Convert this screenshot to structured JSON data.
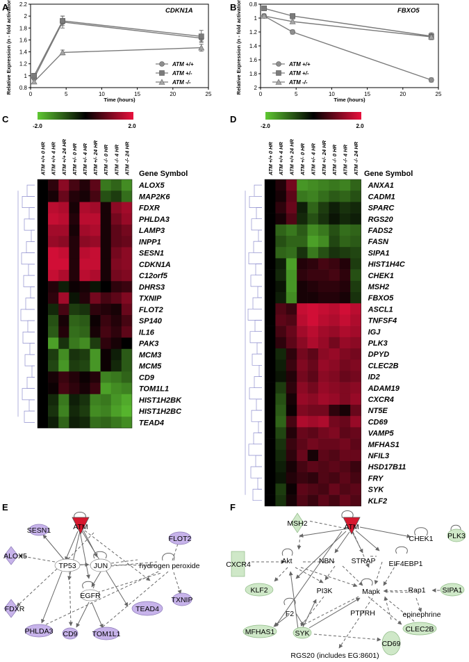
{
  "panel_labels": [
    "A",
    "B",
    "C",
    "D",
    "E",
    "F"
  ],
  "chart_data": [
    {
      "type": "line",
      "title": "CDKN1A",
      "xlabel": "Time (hours)",
      "ylabel": "Relative Expression (n - fold activation)",
      "xlim": [
        0,
        25
      ],
      "ylim": [
        0.8,
        2.2
      ],
      "y_reversed": false,
      "xticks": [
        0,
        5,
        10,
        15,
        20,
        25
      ],
      "yticks": [
        0.8,
        1.0,
        1.2,
        1.4,
        1.6,
        1.8,
        2.0,
        2.2
      ],
      "ytick_labels": [
        "0.8",
        "1",
        "1.2",
        "1.4",
        "1.6",
        "1.8",
        "2",
        "2.2"
      ],
      "x": [
        0.5,
        4.5,
        24
      ],
      "legend_position": "bottom-right",
      "series": [
        {
          "name": "ATM +/+",
          "marker": "circle",
          "values": [
            0.96,
            1.9,
            1.63
          ],
          "errors": [
            0.03,
            0.1,
            0.06
          ]
        },
        {
          "name": "ATM +/-",
          "marker": "square",
          "values": [
            1.0,
            1.92,
            1.66
          ],
          "errors": [
            0.03,
            0.08,
            0.1
          ]
        },
        {
          "name": "ATM -/-",
          "marker": "triangle",
          "values": [
            0.9,
            1.39,
            1.47
          ],
          "errors": [
            0.03,
            0.04,
            0.06
          ]
        }
      ]
    },
    {
      "type": "line",
      "title": "FBXO5",
      "xlabel": "Time (hours)",
      "ylabel": "Relative Expression (n - fold activation)",
      "xlim": [
        0,
        25
      ],
      "ylim": [
        0.8,
        2.0
      ],
      "y_reversed": true,
      "xticks": [
        0,
        5,
        10,
        15,
        20,
        25
      ],
      "yticks": [
        0.8,
        1.0,
        1.2,
        1.4,
        1.6,
        1.8,
        2.0
      ],
      "ytick_labels": [
        "0.8",
        "1",
        "1.2",
        "1.4",
        "1.6",
        "1.8",
        "2"
      ],
      "x": [
        0.5,
        4.5,
        24
      ],
      "legend_position": "bottom-left",
      "series": [
        {
          "name": "ATM +/+",
          "marker": "circle",
          "values": [
            0.97,
            1.2,
            1.89
          ],
          "errors": [
            0.03,
            0.03,
            0.03
          ]
        },
        {
          "name": "ATM +/-",
          "marker": "square",
          "values": [
            0.86,
            0.97,
            1.26
          ],
          "errors": [
            0.03,
            0.03,
            0.05
          ]
        },
        {
          "name": "ATM -/-",
          "marker": "triangle",
          "values": [
            0.97,
            1.05,
            1.27
          ],
          "errors": [
            0.03,
            0.03,
            0.04
          ]
        }
      ]
    },
    {
      "type": "heatmap",
      "colorbar": {
        "min_label": "-2.0",
        "max_label": "2.0",
        "low_color": "#5fc832",
        "mid_color": "#000000",
        "high_color": "#e8103c"
      },
      "column_header": "Gene Symbol",
      "columns": [
        "ATM +/+ 0 HR",
        "ATM +/+ 4 HR",
        "ATM +/+ 24 HR",
        "ATM +/- 0 HR",
        "ATM +/- 4 HR",
        "ATM +/- 24 HR",
        "ATM -/- 0 HR",
        "ATM -/- 4 HR",
        "ATM -/- 24 HR"
      ],
      "rows": [
        "ALOX5",
        "MAP2K6",
        "FDXR",
        "PHLDA3",
        "LAMP3",
        "INPP1",
        "SESN1",
        "CDKN1A",
        "C12orf5",
        "DHRS3",
        "TXNIP",
        "FLOT2",
        "SP140",
        "IL16",
        "PAK3",
        "MCM3",
        "MCM5",
        "CD9",
        "TOM1L1",
        "HIST1H2BK",
        "HIST1H2BC",
        "TEAD4"
      ],
      "values": [
        [
          0.0,
          0.4,
          1.2,
          0.6,
          0.3,
          0.8,
          -1.2,
          -1.0,
          -1.4
        ],
        [
          0.0,
          0.2,
          0.9,
          0.3,
          0.2,
          0.6,
          -0.8,
          -0.6,
          -1.1
        ],
        [
          0.0,
          1.6,
          1.5,
          0.2,
          1.5,
          1.4,
          0.2,
          1.2,
          1.4
        ],
        [
          0.0,
          1.7,
          1.6,
          0.3,
          1.6,
          1.6,
          0.2,
          1.0,
          1.3
        ],
        [
          0.0,
          1.4,
          1.4,
          0.2,
          1.4,
          1.5,
          0.2,
          0.8,
          1.0
        ],
        [
          0.0,
          1.3,
          1.2,
          0.3,
          1.2,
          1.3,
          0.2,
          0.8,
          0.9
        ],
        [
          0.0,
          1.8,
          1.7,
          0.3,
          1.6,
          1.7,
          0.2,
          1.0,
          1.2
        ],
        [
          0.0,
          1.8,
          1.8,
          0.3,
          1.7,
          1.7,
          0.2,
          1.1,
          1.2
        ],
        [
          0.0,
          1.7,
          1.5,
          0.3,
          1.6,
          1.5,
          0.2,
          1.0,
          1.1
        ],
        [
          0.0,
          0.3,
          -0.3,
          0.1,
          0.2,
          -0.2,
          0.0,
          0.4,
          0.5
        ],
        [
          0.0,
          0.4,
          1.4,
          -0.2,
          0.3,
          1.0,
          0.6,
          0.8,
          1.1
        ],
        [
          0.0,
          -0.4,
          0.6,
          -0.6,
          -0.5,
          0.4,
          0.3,
          0.2,
          0.9
        ],
        [
          0.0,
          -0.8,
          0.2,
          -1.0,
          -0.9,
          0.1,
          0.5,
          0.3,
          0.6
        ],
        [
          0.0,
          -0.9,
          0.3,
          -1.1,
          -1.0,
          0.2,
          0.6,
          0.4,
          0.8
        ],
        [
          0.0,
          -1.6,
          -0.5,
          -1.2,
          -1.4,
          -0.6,
          0.4,
          0.2,
          0.0
        ],
        [
          0.0,
          -0.6,
          -1.4,
          -0.5,
          -0.6,
          -1.5,
          0.1,
          -0.3,
          -0.9
        ],
        [
          0.0,
          -0.7,
          -1.5,
          -0.6,
          -0.7,
          -1.5,
          0.1,
          -0.4,
          -0.9
        ],
        [
          0.0,
          0.2,
          0.5,
          0.3,
          0.1,
          0.3,
          -1.3,
          -1.2,
          -1.0
        ],
        [
          0.0,
          0.1,
          0.6,
          0.4,
          0.2,
          0.5,
          -1.6,
          -1.4,
          -1.3
        ],
        [
          0.0,
          -0.4,
          -1.2,
          -0.3,
          -0.5,
          -1.3,
          -1.2,
          -1.5,
          -1.7
        ],
        [
          0.0,
          -0.5,
          -1.3,
          -0.4,
          -0.6,
          -1.4,
          -1.3,
          -1.6,
          -1.8
        ],
        [
          0.0,
          -0.3,
          -1.0,
          -0.3,
          -0.4,
          -1.1,
          -1.0,
          -1.2,
          -1.4
        ]
      ]
    },
    {
      "type": "heatmap",
      "colorbar": {
        "min_label": "-2.0",
        "max_label": "2.0",
        "low_color": "#5fc832",
        "mid_color": "#000000",
        "high_color": "#e8103c"
      },
      "column_header": "Gene Symbol",
      "columns": [
        "ATM +/+ 0 HR",
        "ATM +/+ 4 HR",
        "ATM +/+ 24 HR",
        "ATM +/- 0 HR",
        "ATM +/- 4 HR",
        "ATM +/- 24 HR",
        "ATM -/- 0 HR",
        "ATM -/- 4 HR",
        "ATM -/- 24 HR"
      ],
      "rows": [
        "ANXA1",
        "CADM1",
        "SPARC",
        "RGS20",
        "FADS2",
        "FASN",
        "SIPA1",
        "HIST1H4C",
        "CHEK1",
        "MSH2",
        "FBXO5",
        "ASCL1",
        "TNFSF4",
        "IGJ",
        "PLK3",
        "DPYD",
        "CLEC2B",
        "ID2",
        "ADAM19",
        "CXCR4",
        "NT5E",
        "CD69",
        "VAMP5",
        "MFHAS1",
        "NFIL3",
        "HSD17B11",
        "FRY",
        "SYK",
        "KLF2"
      ],
      "values": [
        [
          0.0,
          0.3,
          1.0,
          -1.5,
          -1.4,
          -1.3,
          -1.2,
          -1.3,
          -1.0
        ],
        [
          0.0,
          0.2,
          0.8,
          -1.2,
          -1.3,
          -1.1,
          -0.9,
          -1.0,
          -0.8
        ],
        [
          0.0,
          0.4,
          0.9,
          -0.3,
          -1.0,
          -0.6,
          -0.3,
          -0.5,
          -0.4
        ],
        [
          0.0,
          0.2,
          0.7,
          -0.4,
          -0.8,
          -0.5,
          -0.2,
          -0.4,
          -0.3
        ],
        [
          0.0,
          -1.0,
          -1.2,
          -0.9,
          -1.4,
          -1.2,
          -0.8,
          -1.1,
          -1.0
        ],
        [
          0.0,
          -0.8,
          -1.0,
          -1.0,
          -1.6,
          -1.4,
          -0.7,
          -1.0,
          -0.9
        ],
        [
          0.0,
          -1.0,
          -1.1,
          -0.5,
          -1.2,
          -0.8,
          -0.5,
          -0.6,
          -0.7
        ],
        [
          0.0,
          -0.3,
          -1.6,
          0.3,
          0.4,
          0.6,
          0.5,
          0.3,
          -0.6
        ],
        [
          0.0,
          -0.4,
          -1.5,
          0.4,
          0.5,
          0.5,
          0.6,
          0.4,
          -0.8
        ],
        [
          0.0,
          -0.2,
          -1.5,
          0.2,
          0.3,
          0.4,
          0.4,
          0.3,
          -0.6
        ],
        [
          0.0,
          -0.3,
          -1.4,
          0.2,
          0.2,
          0.3,
          0.3,
          0.2,
          -0.5
        ],
        [
          0.0,
          0.7,
          0.5,
          1.7,
          1.8,
          1.7,
          1.6,
          1.8,
          1.6
        ],
        [
          0.0,
          0.8,
          0.7,
          1.6,
          1.8,
          1.6,
          1.5,
          1.7,
          1.5
        ],
        [
          0.0,
          0.6,
          0.9,
          1.4,
          1.6,
          1.4,
          1.3,
          1.5,
          1.4
        ],
        [
          0.0,
          0.4,
          0.8,
          1.2,
          1.5,
          1.3,
          1.0,
          1.3,
          1.2
        ],
        [
          0.0,
          -0.4,
          0.4,
          1.0,
          0.8,
          1.2,
          1.3,
          1.1,
          1.0
        ],
        [
          0.0,
          -0.3,
          0.5,
          1.1,
          0.9,
          1.3,
          1.2,
          1.0,
          1.1
        ],
        [
          0.0,
          -0.2,
          0.3,
          1.0,
          0.8,
          1.2,
          1.1,
          0.9,
          1.0
        ],
        [
          0.0,
          -0.6,
          0.4,
          1.2,
          1.0,
          1.3,
          1.2,
          1.1,
          1.2
        ],
        [
          0.0,
          -0.8,
          0.2,
          1.3,
          1.2,
          1.4,
          1.3,
          1.1,
          1.3
        ],
        [
          0.0,
          -0.9,
          0.1,
          1.1,
          1.0,
          1.0,
          0.4,
          0.2,
          0.9
        ],
        [
          0.0,
          -1.0,
          0.6,
          1.5,
          1.4,
          1.5,
          1.0,
          0.9,
          1.3
        ],
        [
          0.0,
          -0.7,
          0.3,
          0.9,
          0.8,
          1.0,
          1.1,
          0.8,
          0.9
        ],
        [
          0.0,
          -0.5,
          0.5,
          0.8,
          1.0,
          0.9,
          0.9,
          1.0,
          0.8
        ],
        [
          0.0,
          -0.4,
          0.4,
          0.9,
          0.2,
          0.8,
          0.7,
          0.9,
          0.9
        ],
        [
          0.0,
          -0.3,
          0.2,
          0.6,
          0.8,
          0.7,
          0.8,
          0.7,
          0.5
        ],
        [
          0.0,
          -0.2,
          0.3,
          0.5,
          0.4,
          0.7,
          0.6,
          0.8,
          0.6
        ],
        [
          0.0,
          -0.6,
          0.1,
          0.8,
          0.7,
          0.6,
          0.9,
          0.7,
          0.8
        ],
        [
          0.0,
          -0.5,
          0.2,
          0.7,
          0.5,
          0.8,
          0.6,
          0.9,
          0.7
        ]
      ]
    }
  ],
  "networks": {
    "E": {
      "nodes": [
        {
          "id": "ATM",
          "label": "ATM"
        },
        {
          "id": "SESN1",
          "label": "SESN1"
        },
        {
          "id": "ALOX5",
          "label": "ALOX5"
        },
        {
          "id": "TP53",
          "label": "TP53"
        },
        {
          "id": "JUN",
          "label": "JUN"
        },
        {
          "id": "HP",
          "label": "hydrogen peroxide"
        },
        {
          "id": "FLOT2",
          "label": "FLOT2"
        },
        {
          "id": "EGFR",
          "label": "EGFR"
        },
        {
          "id": "FDXR",
          "label": "FDXR"
        },
        {
          "id": "PHLDA3",
          "label": "PHLDA3"
        },
        {
          "id": "CD9",
          "label": "CD9"
        },
        {
          "id": "TOM1L1",
          "label": "TOM1L1"
        },
        {
          "id": "TEAD4",
          "label": "TEAD4"
        },
        {
          "id": "TXNIP",
          "label": "TXNIP"
        }
      ]
    },
    "F": {
      "nodes": [
        {
          "id": "MSH2",
          "label": "MSH2"
        },
        {
          "id": "ATM",
          "label": "ATM"
        },
        {
          "id": "CHEK1",
          "label": "CHEK1"
        },
        {
          "id": "PLK3",
          "label": "PLK3"
        },
        {
          "id": "CXCR4",
          "label": "CXCR4"
        },
        {
          "id": "Akt",
          "label": "Akt"
        },
        {
          "id": "NBN",
          "label": "NBN"
        },
        {
          "id": "STRAP",
          "label": "STRAP"
        },
        {
          "id": "EIF4EBP1",
          "label": "EIF4EBP1"
        },
        {
          "id": "KLF2",
          "label": "KLF2"
        },
        {
          "id": "PI3K",
          "label": "PI3K"
        },
        {
          "id": "Mapk",
          "label": "Mapk"
        },
        {
          "id": "Rap1",
          "label": "Rap1"
        },
        {
          "id": "SIPA1",
          "label": "SIPA1"
        },
        {
          "id": "F2",
          "label": "F2"
        },
        {
          "id": "PTPRH",
          "label": "PTPRH"
        },
        {
          "id": "epinephrine",
          "label": "epinephrine"
        },
        {
          "id": "MFHAS1",
          "label": "MFHAS1"
        },
        {
          "id": "SYK",
          "label": "SYK"
        },
        {
          "id": "CLEC2B",
          "label": "CLEC2B"
        },
        {
          "id": "CD69",
          "label": "CD69"
        },
        {
          "id": "RGS20",
          "label": "RGS20 (includes EG:8601)"
        }
      ]
    }
  }
}
